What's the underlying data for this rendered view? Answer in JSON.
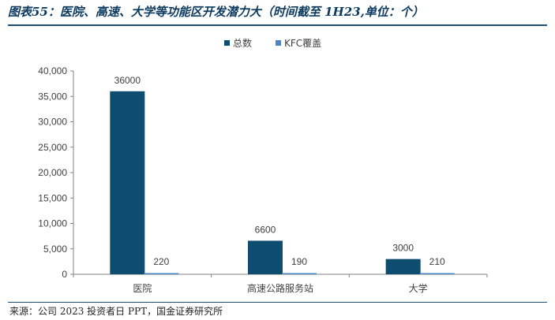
{
  "header": {
    "title": "图表55：医院、高速、大学等功能区开发潜力大（时间截至 1H23,单位：个）"
  },
  "footer": {
    "source": "来源：公司 2023 投资者日 PPT，国金证券研究所"
  },
  "chart_data": {
    "type": "bar",
    "categories": [
      "医院",
      "高速公路服务站",
      "大学"
    ],
    "series": [
      {
        "name": "总数",
        "values": [
          36000,
          6600,
          3000
        ],
        "color": "#0e4d70"
      },
      {
        "name": "KFC覆盖",
        "values": [
          220,
          190,
          210
        ],
        "color": "#4a86c5"
      }
    ],
    "ylim": [
      0,
      40000
    ],
    "yticks": [
      0,
      5000,
      10000,
      15000,
      20000,
      25000,
      30000,
      35000,
      40000
    ],
    "ytick_labels": [
      "0",
      "5,000",
      "10,000",
      "15,000",
      "20,000",
      "25,000",
      "30,000",
      "35,000",
      "40,000"
    ],
    "data_labels": [
      [
        "36000",
        "6600",
        "3000"
      ],
      [
        "220",
        "190",
        "210"
      ]
    ],
    "legend_position": "top-center",
    "grid": false
  }
}
